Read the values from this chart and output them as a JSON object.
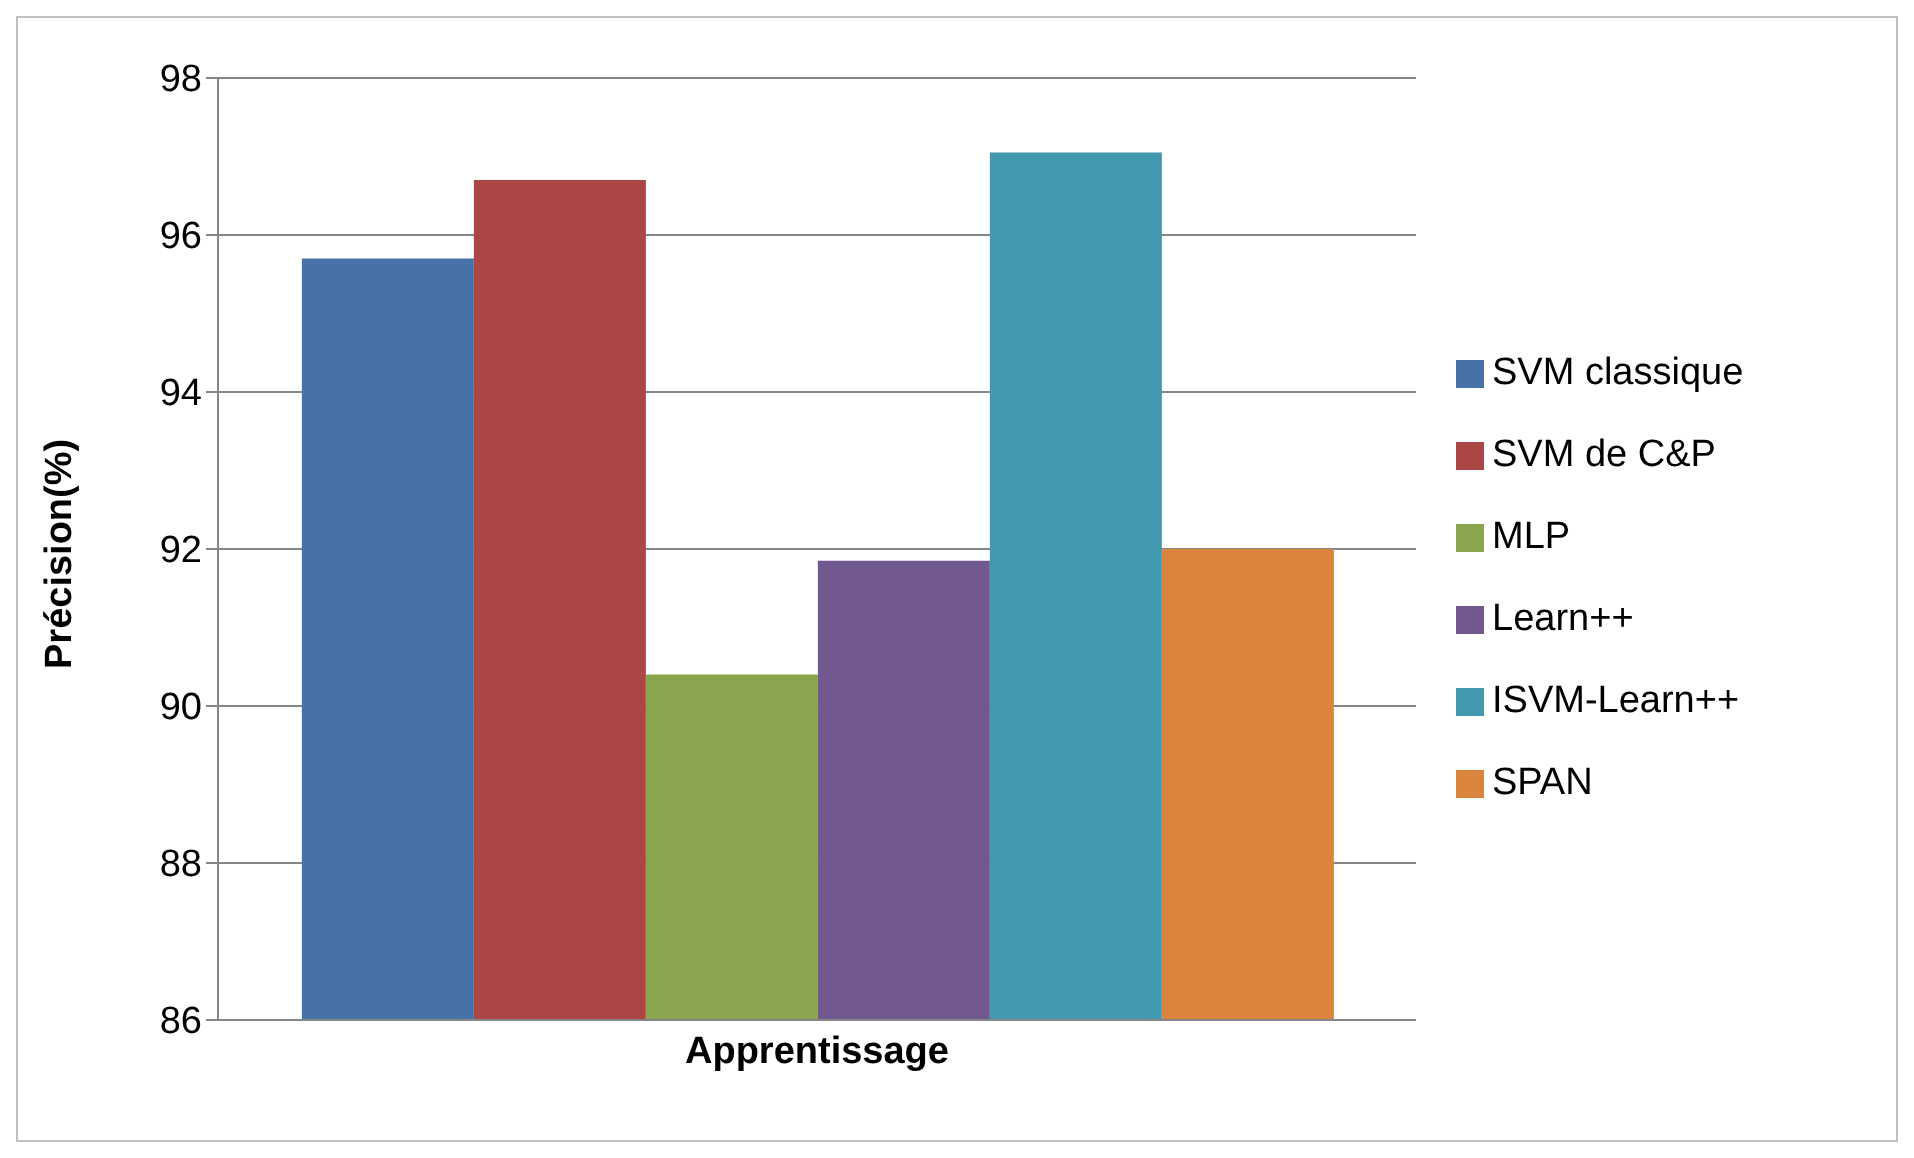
{
  "chart_data": {
    "type": "bar",
    "ylabel": "Précision(%)",
    "categories": [
      "Apprentissage"
    ],
    "series": [
      {
        "name": "SVM classique",
        "color": "#4672a8",
        "values": [
          95.7
        ]
      },
      {
        "name": "SVM de C&P",
        "color": "#aa4643",
        "values": [
          96.7
        ]
      },
      {
        "name": "MLP",
        "color": "#89a54e",
        "values": [
          90.4
        ]
      },
      {
        "name": "Learn++",
        "color": "#71588f",
        "values": [
          91.85
        ]
      },
      {
        "name": "ISVM-Learn++",
        "color": "#4198af",
        "values": [
          97.05
        ]
      },
      {
        "name": "SPAN",
        "color": "#db843d",
        "values": [
          92.0
        ]
      }
    ],
    "ylim": [
      86,
      98
    ],
    "yticks": [
      86,
      88,
      90,
      92,
      94,
      96,
      98
    ],
    "grid": "y",
    "legend": "right"
  }
}
